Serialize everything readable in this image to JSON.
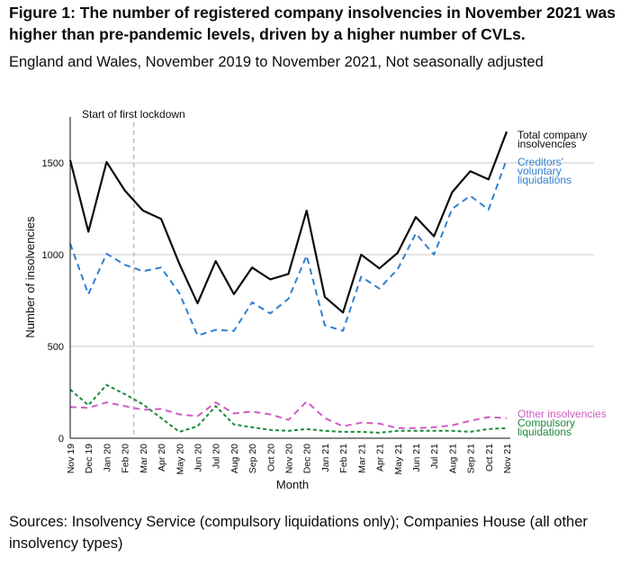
{
  "title": "Figure 1: The number of registered company insolvencies in November 2021 was higher than pre-pandemic levels, driven by a higher number of CVLs.",
  "subtitle": "England and Wales, November 2019 to November 2021, Not seasonally adjusted",
  "source": "Sources: Insolvency Service (compulsory liquidations only); Companies House (all other insolvency types)",
  "colors": {
    "total": "#0b0c0c",
    "cvl": "#2f7fd1",
    "other": "#d05bc6",
    "compulsory": "#1d8a3a",
    "grid": "#c8c8c8",
    "annotation_line": "#b1b4b6"
  },
  "chart_data": {
    "type": "line",
    "xlabel": "Month",
    "ylabel": "Number of insolvencies",
    "ylim": [
      0,
      1750
    ],
    "yticks": [
      0,
      500,
      1000,
      1500
    ],
    "grid": true,
    "categories": [
      "Nov 19",
      "Dec 19",
      "Jan 20",
      "Feb 20",
      "Mar 20",
      "Apr 20",
      "May 20",
      "Jun 20",
      "Jul 20",
      "Aug 20",
      "Sep 20",
      "Oct 20",
      "Nov 20",
      "Dec 20",
      "Jan 21",
      "Feb 21",
      "Mar 21",
      "Apr 21",
      "May 21",
      "Jun 21",
      "Jul 21",
      "Aug 21",
      "Sep 21",
      "Oct 21",
      "Nov 21"
    ],
    "annotation": {
      "label": "Start of first lockdown",
      "x_index": 3.5
    },
    "series": [
      {
        "name": "Total company insolvencies",
        "key": "total",
        "dashed": false,
        "values": [
          1515,
          1125,
          1505,
          1350,
          1240,
          1195,
          950,
          735,
          965,
          785,
          930,
          865,
          895,
          1240,
          770,
          685,
          1000,
          925,
          1010,
          1205,
          1100,
          1340,
          1455,
          1410,
          1670
        ]
      },
      {
        "name": "Creditors' voluntary liquidations",
        "key": "cvl",
        "dashed": true,
        "values": [
          1060,
          785,
          1005,
          945,
          910,
          930,
          790,
          560,
          590,
          585,
          740,
          680,
          760,
          995,
          615,
          585,
          880,
          815,
          920,
          1115,
          1000,
          1250,
          1320,
          1245,
          1520
        ]
      },
      {
        "name": "Other insolvencies",
        "key": "other",
        "dashed": true,
        "values": [
          170,
          165,
          195,
          175,
          155,
          160,
          130,
          120,
          195,
          135,
          145,
          130,
          100,
          200,
          110,
          65,
          85,
          80,
          55,
          55,
          60,
          70,
          95,
          115,
          110
        ]
      },
      {
        "name": "Compulsory liquidations",
        "key": "compulsory",
        "dashed": true,
        "values": [
          265,
          180,
          290,
          240,
          185,
          110,
          35,
          65,
          175,
          75,
          60,
          45,
          40,
          50,
          40,
          35,
          35,
          30,
          40,
          40,
          40,
          40,
          35,
          50,
          55
        ]
      }
    ],
    "legend": [
      {
        "key": "total",
        "lines": [
          "Total company",
          "insolvencies"
        ]
      },
      {
        "key": "cvl",
        "lines": [
          "Creditors'",
          "voluntary",
          "liquidations"
        ]
      },
      {
        "key": "other",
        "lines": [
          "Other insolvencies"
        ]
      },
      {
        "key": "compulsory",
        "lines": [
          "Compulsory",
          "liquidations"
        ]
      }
    ]
  }
}
